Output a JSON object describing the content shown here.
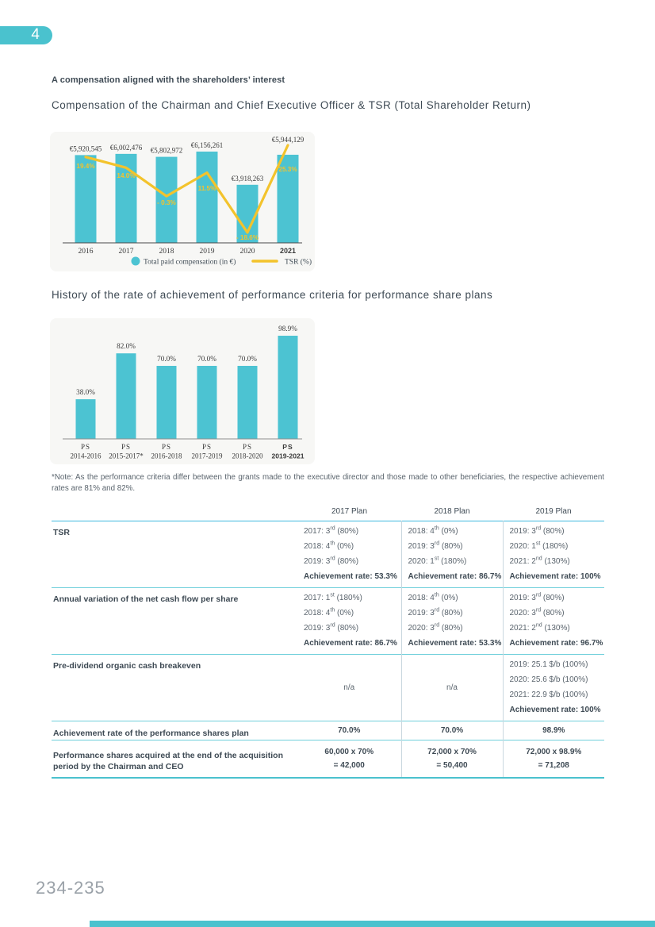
{
  "page": {
    "chapter_badge": "4",
    "footer_page": "234-235"
  },
  "headings": {
    "kicker": "A compensation aligned with the shareholders’ interest",
    "chart1_title": "Compensation of the Chairman and Chief Executive Officer & TSR (Total Shareholder Return)",
    "chart2_title": "History of the rate of achievement of performance criteria for performance share plans"
  },
  "note": "*Note: As the performance criteria differ between the grants made to the executive director and those made to other beneficiaries, the respective achievement rates are 81% and 82%.",
  "colors": {
    "teal": "#4ac2ce",
    "bar": "#4cc3d2",
    "tsr_yellow": "#f3c32c",
    "heading": "#3e4a54",
    "body_text": "#5a646d",
    "panel_bg": "#f7f7f5",
    "table_header_line": "#3eb8de",
    "table_row_line": "#6fcfdb",
    "table_bottom_line": "#4ac2ce"
  },
  "chart_data": [
    {
      "type": "bar",
      "title": "Compensation of the Chairman and Chief Executive Officer & TSR (Total Shareholder Return)",
      "categories": [
        "2016",
        "2017",
        "2018",
        "2019",
        "2020",
        "2021"
      ],
      "bold_category_index": 5,
      "series": [
        {
          "name": "Total paid compensation (in €)",
          "type": "bar",
          "values": [
            5920545,
            6002476,
            5802972,
            6156261,
            3918263,
            5944129
          ],
          "labels": [
            "€5,920,545",
            "€6,002,476",
            "€5,802,972",
            "€6,156,261",
            "€3,918,263",
            "€5,944,129"
          ],
          "color": "#4cc3d2"
        },
        {
          "name": "TSR (%)",
          "type": "line",
          "values": [
            19.4,
            14.0,
            -0.3,
            11.5,
            -18.6,
            25.3
          ],
          "labels": [
            "19.4%",
            "14.0%",
            "- 0.3%",
            "11.5%",
            "- 18.6%",
            "25.3%"
          ],
          "color": "#f3c32c"
        }
      ],
      "legend_position": "bottom",
      "grid": false
    },
    {
      "type": "bar",
      "title": "History of the rate of achievement of performance criteria for performance share plans",
      "categories": [
        [
          "PS",
          "2014-2016"
        ],
        [
          "PS",
          "2015-2017*"
        ],
        [
          "PS",
          "2016-2018"
        ],
        [
          "PS",
          "2017-2019"
        ],
        [
          "PS",
          "2018-2020"
        ],
        [
          "PS",
          "2019-2021"
        ]
      ],
      "bold_category_index": 5,
      "values": [
        38.0,
        82.0,
        70.0,
        70.0,
        70.0,
        98.9
      ],
      "labels": [
        "38.0%",
        "82.0%",
        "70.0%",
        "70.0%",
        "70.0%",
        "98.9%"
      ],
      "ylim": [
        0,
        100
      ],
      "color": "#4cc3d2",
      "grid": false
    }
  ],
  "table": {
    "columns": [
      "",
      "2017 Plan",
      "2018 Plan",
      "2019 Plan"
    ],
    "rows": [
      {
        "label": "TSR",
        "cells": [
          {
            "lines": [
              "2017: 3rd (80%)",
              "2018: 4th (0%)",
              "2019: 3rd (80%)"
            ],
            "rate": "Achievement rate: 53.3%"
          },
          {
            "lines": [
              "2018: 4th (0%)",
              "2019: 3rd (80%)",
              "2020: 1st (180%)"
            ],
            "rate": "Achievement rate: 86.7%"
          },
          {
            "lines": [
              "2019: 3rd (80%)",
              "2020: 1st (180%)",
              "2021: 2nd (130%)"
            ],
            "rate": "Achievement rate: 100%"
          }
        ]
      },
      {
        "label": "Annual variation of the net cash flow per share",
        "cells": [
          {
            "lines": [
              "2017: 1st (180%)",
              "2018: 4th (0%)",
              "2019: 3rd (80%)"
            ],
            "rate": "Achievement rate: 86.7%"
          },
          {
            "lines": [
              "2018: 4th (0%)",
              "2019: 3rd (80%)",
              "2020: 3rd (80%)"
            ],
            "rate": "Achievement rate: 53.3%"
          },
          {
            "lines": [
              "2019: 3rd (80%)",
              "2020: 3rd (80%)",
              "2021: 2nd (130%)"
            ],
            "rate": "Achievement rate: 96.7%"
          }
        ]
      },
      {
        "label": "Pre-dividend organic cash breakeven",
        "cells": [
          {
            "center": "n/a"
          },
          {
            "center": "n/a"
          },
          {
            "lines": [
              "2019: 25.1 $/b (100%)",
              "2020: 25.6 $/b (100%)",
              "2021: 22.9 $/b (100%)"
            ],
            "rate": "Achievement rate: 100%"
          }
        ]
      },
      {
        "label": "Achievement rate of the performance shares plan",
        "cells": [
          {
            "bold_center": "70.0%"
          },
          {
            "bold_center": "70.0%"
          },
          {
            "bold_center": "98.9%"
          }
        ]
      },
      {
        "label": "Performance shares acquired at the end of the acquisition period by the Chairman and CEO",
        "cells": [
          {
            "bold_center_lines": [
              "60,000 x 70%",
              "= 42,000"
            ]
          },
          {
            "bold_center_lines": [
              "72,000 x 70%",
              "= 50,400"
            ]
          },
          {
            "bold_center_lines": [
              "72,000 x 98.9%",
              "= 71,208"
            ]
          }
        ]
      }
    ]
  }
}
